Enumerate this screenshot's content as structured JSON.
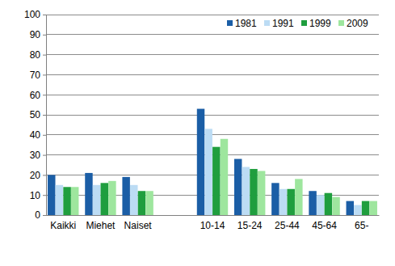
{
  "chart_data": {
    "type": "bar",
    "categories": [
      "Kaikki",
      "Miehet",
      "Naiset",
      null,
      "10-14",
      "15-24",
      "25-44",
      "45-64",
      "65-"
    ],
    "series": [
      {
        "name": "1981",
        "color": "#1b5ea6",
        "values": [
          20,
          21,
          19,
          null,
          53,
          28,
          16,
          12,
          7
        ]
      },
      {
        "name": "1991",
        "color": "#bcdcf4",
        "values": [
          15,
          15,
          15,
          null,
          43,
          24,
          13,
          10,
          5
        ]
      },
      {
        "name": "1999",
        "color": "#1f9e3e",
        "values": [
          14,
          16,
          12,
          null,
          34,
          23,
          13,
          11,
          7
        ]
      },
      {
        "name": "2009",
        "color": "#9ee69e",
        "values": [
          14,
          17,
          12,
          null,
          38,
          22,
          18,
          9,
          7
        ]
      }
    ],
    "ylim": [
      0,
      100
    ],
    "yticks": [
      0,
      10,
      20,
      30,
      40,
      50,
      60,
      70,
      80,
      90,
      100
    ],
    "grid": true,
    "legend": "top-right"
  }
}
